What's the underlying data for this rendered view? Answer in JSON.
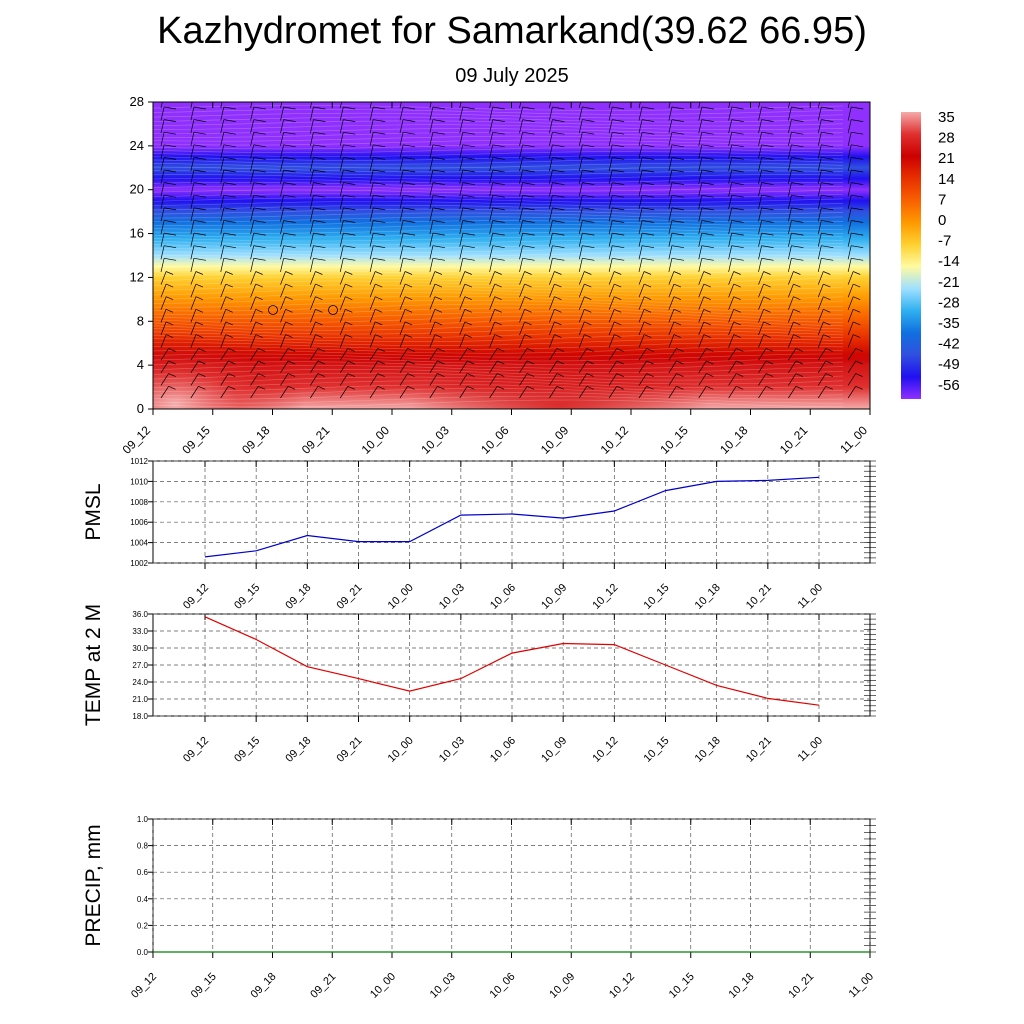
{
  "title": "Kazhydromet for Samarkand(39.62 66.95)",
  "subtitle": "09 July 2025",
  "colors": {
    "pmsl_line": "#0000cc",
    "temp_line": "#e00000",
    "precip_line": "#008000",
    "grid": "#555555"
  },
  "chart_data": [
    {
      "type": "heatmap",
      "title": "",
      "xlabel": "",
      "ylabel": "",
      "x_tick_labels": [
        "09_12",
        "09_15",
        "09_18",
        "09_21",
        "10_00",
        "10_03",
        "10_06",
        "10_09",
        "10_12",
        "10_15",
        "10_18",
        "10_21",
        "11_00"
      ],
      "y_ticks": [
        0,
        4,
        8,
        12,
        16,
        20,
        24,
        28
      ],
      "ylim": [
        0,
        28
      ],
      "colorbar": {
        "labels": [
          "35",
          "28",
          "21",
          "14",
          "7",
          "0",
          "-7",
          "-14",
          "-21",
          "-28",
          "-35",
          "-42",
          "-49",
          "-56"
        ],
        "colors": [
          "#f5aaaa",
          "#e03030",
          "#cc0000",
          "#e83000",
          "#f86000",
          "#ff9900",
          "#ffd030",
          "#fffaa0",
          "#a0e0ff",
          "#30b0f0",
          "#1070e0",
          "#3050e0",
          "#2010f0",
          "#9030ff"
        ]
      },
      "temperature_layers": [
        {
          "height": 0,
          "value": 35
        },
        {
          "height": 2,
          "value": 28
        },
        {
          "height": 4,
          "value": 24
        },
        {
          "height": 8,
          "value": 8
        },
        {
          "height": 12,
          "value": -7
        },
        {
          "height": 14,
          "value": -21
        },
        {
          "height": 17,
          "value": -35
        },
        {
          "height": 20,
          "value": -56
        },
        {
          "height": 22,
          "value": -42
        },
        {
          "height": 24,
          "value": -56
        },
        {
          "height": 28,
          "value": -56
        }
      ],
      "wind_barbs": "shown"
    },
    {
      "type": "line",
      "ylabel": "PMSL",
      "x": [
        "09_12",
        "09_15",
        "09_18",
        "09_21",
        "10_00",
        "10_03",
        "10_06",
        "10_09",
        "10_12",
        "10_15",
        "10_18",
        "10_21",
        "11_00"
      ],
      "series": [
        {
          "values": [
            1002.6,
            1003.2,
            1004.7,
            1004.1,
            1004.1,
            1006.7,
            1006.8,
            1006.4,
            1007.1,
            1009.1,
            1010.0,
            1010.1,
            1010.4
          ]
        }
      ],
      "y_ticks": [
        "1002",
        "1004",
        "1006",
        "1008",
        "1010",
        "1012"
      ],
      "ylim": [
        1002,
        1012
      ]
    },
    {
      "type": "line",
      "ylabel": "TEMP at 2 M",
      "x": [
        "09_12",
        "09_15",
        "09_18",
        "09_21",
        "10_00",
        "10_03",
        "10_06",
        "10_09",
        "10_12",
        "10_15",
        "10_18",
        "10_21",
        "11_00"
      ],
      "series": [
        {
          "values": [
            35.5,
            31.5,
            26.7,
            24.6,
            22.4,
            24.6,
            29.1,
            30.8,
            30.6,
            27.0,
            23.4,
            21.1,
            19.9
          ]
        }
      ],
      "y_ticks": [
        "18.0",
        "21.0",
        "24.0",
        "27.0",
        "30.0",
        "33.0",
        "36.0"
      ],
      "ylim": [
        18,
        36
      ]
    },
    {
      "type": "line",
      "ylabel": "PRECIP, mm",
      "x": [
        "09_12",
        "09_15",
        "09_18",
        "09_21",
        "10_00",
        "10_03",
        "10_06",
        "10_09",
        "10_12",
        "10_15",
        "10_18",
        "10_21",
        "11_00"
      ],
      "series": [
        {
          "values": [
            0,
            0,
            0,
            0,
            0,
            0,
            0,
            0,
            0,
            0,
            0,
            0,
            0
          ]
        }
      ],
      "y_ticks": [
        "0.0",
        "0.2",
        "0.4",
        "0.6",
        "0.8",
        "1.0"
      ],
      "ylim": [
        0,
        1
      ]
    }
  ]
}
